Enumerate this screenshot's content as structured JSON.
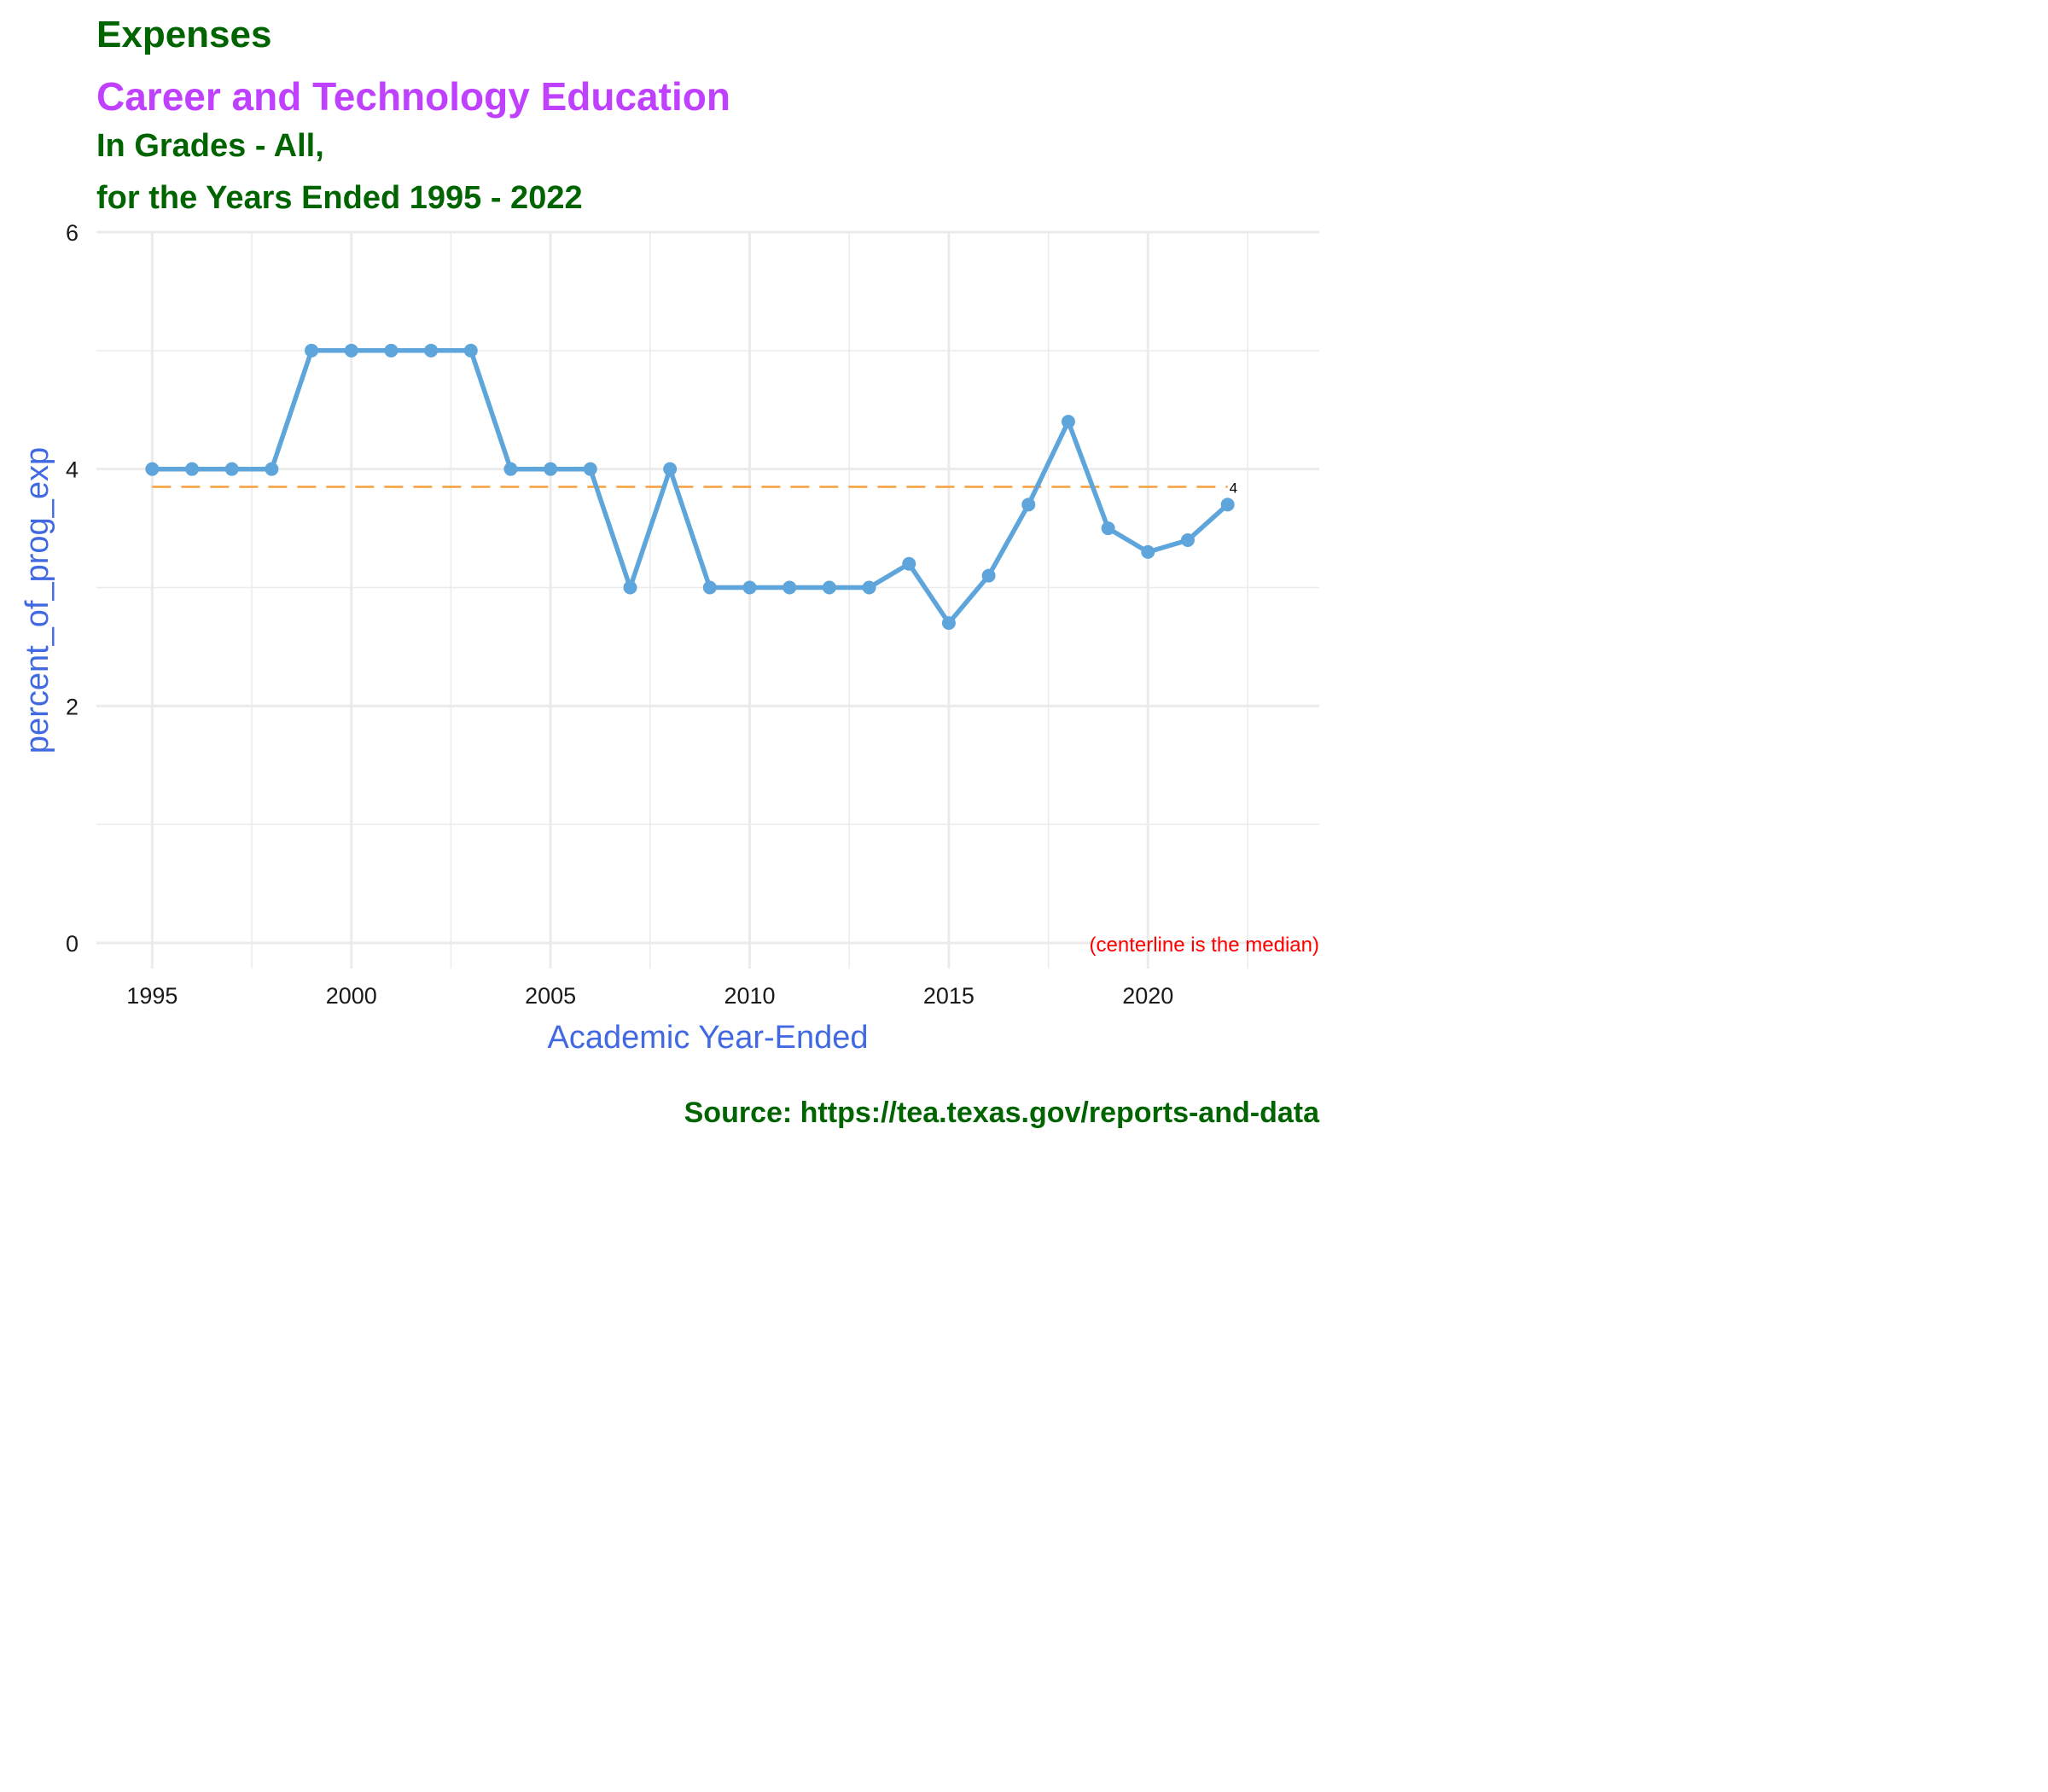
{
  "title": "Expenses",
  "subtitle": "Career and Technology Education",
  "subtitle_line2": "In Grades - All,",
  "subtitle_line3": "for the Years Ended 1995 - 2022",
  "source": "Source:  https://tea.texas.gov/reports-and-data",
  "colors": {
    "title": "#006400",
    "subtitle": "#BF40FF",
    "axis_label": "#4169E1",
    "line": "#5DA5DA",
    "median": "#F5A03C",
    "note": "#FF0000",
    "grid": "#EBEBEB"
  },
  "chart_data": {
    "type": "line",
    "xlabel": "Academic Year-Ended",
    "ylabel": "percent_of_prog_exp",
    "xlim": [
      1993.6,
      2024.3
    ],
    "ylim": [
      0,
      6
    ],
    "xticks": [
      1995,
      2000,
      2005,
      2010,
      2015,
      2020
    ],
    "yticks": [
      0,
      2,
      4,
      6
    ],
    "grid": true,
    "x": [
      1995,
      1996,
      1997,
      1998,
      1999,
      2000,
      2001,
      2002,
      2003,
      2004,
      2005,
      2006,
      2007,
      2008,
      2009,
      2010,
      2011,
      2012,
      2013,
      2014,
      2015,
      2016,
      2017,
      2018,
      2019,
      2020,
      2021,
      2022
    ],
    "series": [
      {
        "values": [
          4,
          4,
          4,
          4,
          5,
          5,
          5,
          5,
          5,
          4,
          4,
          4,
          3,
          4,
          3,
          3,
          3,
          3,
          3,
          3.2,
          2.7,
          3.1,
          3.7,
          4.4,
          3.5,
          3.3,
          3.4,
          3.7
        ]
      }
    ],
    "median": 3.85,
    "median_label": "4",
    "annotation": "(centerline is the median)"
  }
}
